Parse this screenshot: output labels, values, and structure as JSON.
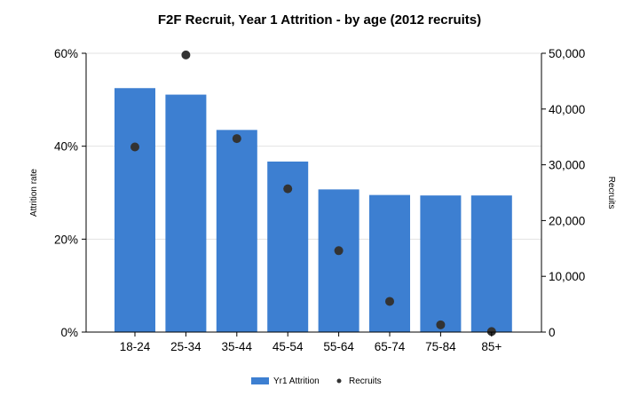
{
  "chart_data": {
    "type": "bar",
    "title": "F2F Recruit, Year 1 Attrition - by age (2012 recruits)",
    "categories": [
      "18-24",
      "25-34",
      "35-44",
      "45-54",
      "55-64",
      "65-74",
      "75-84",
      "85+"
    ],
    "series": [
      {
        "name": "Yr1 Attrition",
        "type": "bar",
        "axis": "left",
        "color": "#3d7fd1",
        "values": [
          0.525,
          0.511,
          0.435,
          0.367,
          0.307,
          0.295,
          0.294,
          0.294
        ]
      },
      {
        "name": "Recruits",
        "type": "scatter",
        "axis": "right",
        "color": "#333333",
        "values": [
          33200,
          49700,
          34700,
          25700,
          14600,
          5500,
          1300,
          100
        ]
      }
    ],
    "y_left": {
      "label": "Attrition rate",
      "min": 0,
      "max": 0.6,
      "ticks": [
        0,
        0.2,
        0.4,
        0.6
      ],
      "tick_labels": [
        "0%",
        "20%",
        "40%",
        "60%"
      ]
    },
    "y_right": {
      "label": "Recruits",
      "min": 0,
      "max": 50000,
      "ticks": [
        0,
        10000,
        20000,
        30000,
        40000,
        50000
      ],
      "tick_labels": [
        "0",
        "10,000",
        "20,000",
        "30,000",
        "40,000",
        "50,000"
      ]
    },
    "grid": true,
    "legend_position": "bottom"
  }
}
